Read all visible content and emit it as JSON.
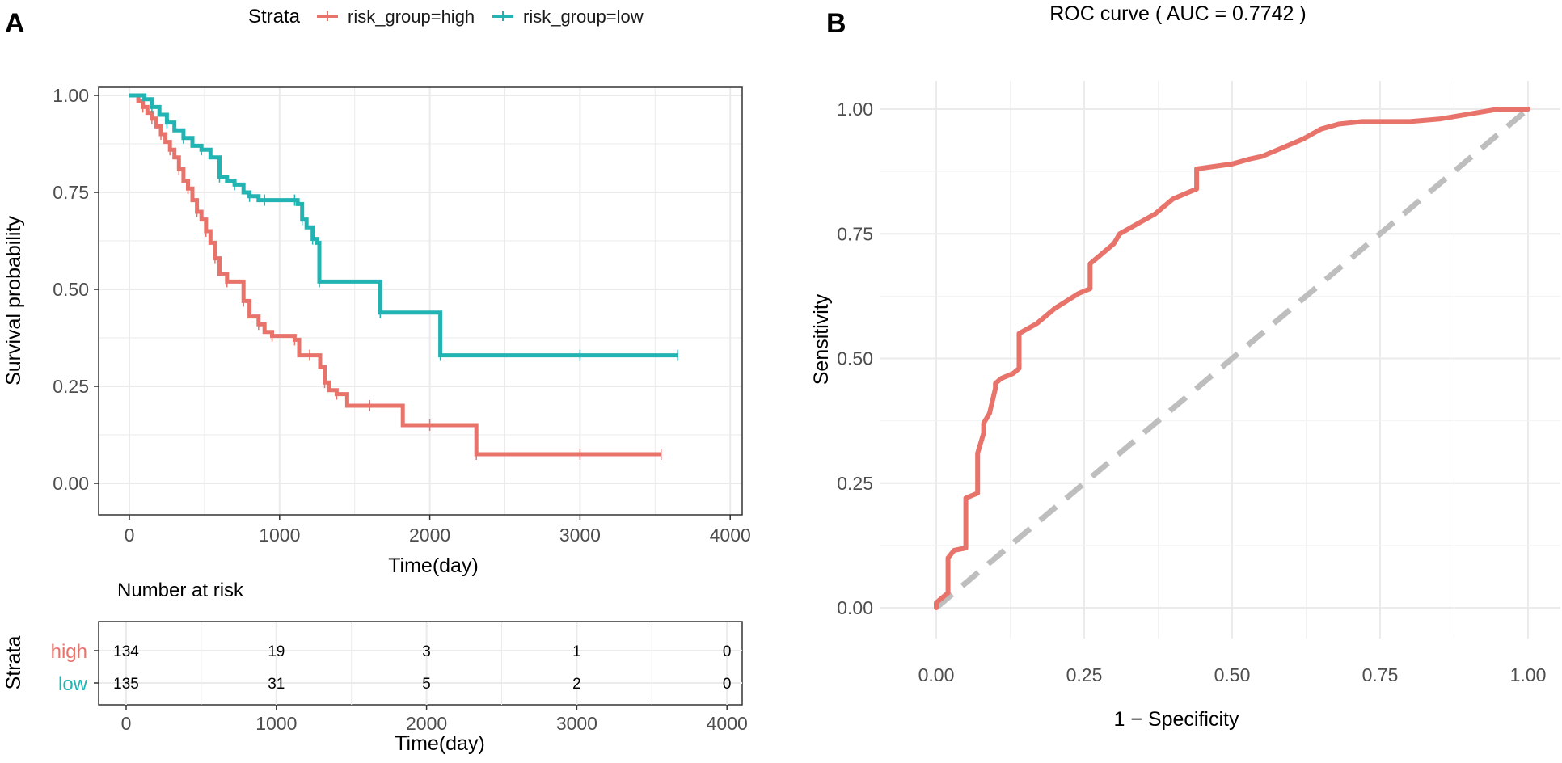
{
  "panels": {
    "a": "A",
    "b": "B"
  },
  "colors": {
    "high": "#E8736B",
    "low": "#22B3B3",
    "diagonal": "#BEBEBE",
    "grid": "#EBEBEB",
    "axis": "#333333"
  },
  "legend": {
    "title": "Strata",
    "high": "risk_group=high",
    "low": "risk_group=low"
  },
  "km": {
    "ylabel": "Survival probability",
    "xlabel": "Time(day)"
  },
  "risk_table": {
    "title": "Number at risk",
    "strata_label": "Strata",
    "row_labels": [
      "high",
      "low"
    ],
    "xlabel": "Time(day)"
  },
  "roc": {
    "title": "ROC curve ( AUC =  0.7742 )",
    "xlabel": "1 − Specificity",
    "ylabel": "Sensitivity"
  },
  "chart_data": [
    {
      "type": "line",
      "subtype": "kaplan-meier",
      "xlim": [
        0,
        4000
      ],
      "ylim": [
        0,
        1
      ],
      "xticks": [
        "0",
        "1000",
        "2000",
        "3000",
        "4000"
      ],
      "yticks": [
        "0.00",
        "0.25",
        "0.50",
        "0.75",
        "1.00"
      ],
      "series": [
        {
          "name": "risk_group=high",
          "x": [
            0,
            60,
            90,
            120,
            150,
            180,
            210,
            240,
            270,
            300,
            330,
            360,
            390,
            420,
            450,
            480,
            510,
            540,
            570,
            600,
            650,
            700,
            760,
            800,
            860,
            900,
            950,
            1050,
            1100,
            1130,
            1200,
            1270,
            1300,
            1330,
            1380,
            1450,
            1600,
            1820,
            2000,
            2200,
            2310,
            2500,
            3000,
            3540
          ],
          "y": [
            1.0,
            0.985,
            0.97,
            0.955,
            0.94,
            0.92,
            0.9,
            0.88,
            0.86,
            0.84,
            0.81,
            0.78,
            0.76,
            0.73,
            0.7,
            0.68,
            0.65,
            0.62,
            0.58,
            0.54,
            0.52,
            0.52,
            0.47,
            0.43,
            0.41,
            0.39,
            0.38,
            0.38,
            0.37,
            0.33,
            0.33,
            0.3,
            0.26,
            0.24,
            0.23,
            0.2,
            0.2,
            0.15,
            0.15,
            0.15,
            0.075,
            0.075,
            0.075,
            0.075
          ]
        },
        {
          "name": "risk_group=low",
          "x": [
            0,
            100,
            150,
            200,
            250,
            300,
            360,
            420,
            480,
            540,
            600,
            650,
            700,
            760,
            800,
            860,
            900,
            1000,
            1100,
            1120,
            1150,
            1180,
            1220,
            1250,
            1265,
            1500,
            1670,
            1900,
            2070,
            2500,
            3000,
            3650
          ],
          "y": [
            1.0,
            0.99,
            0.97,
            0.95,
            0.93,
            0.91,
            0.89,
            0.87,
            0.86,
            0.84,
            0.79,
            0.78,
            0.77,
            0.75,
            0.74,
            0.73,
            0.73,
            0.73,
            0.73,
            0.72,
            0.68,
            0.66,
            0.63,
            0.62,
            0.52,
            0.52,
            0.44,
            0.44,
            0.33,
            0.33,
            0.33,
            0.33
          ]
        }
      ]
    },
    {
      "type": "table",
      "title": "Number at risk",
      "xlim": [
        0,
        4000
      ],
      "xticks": [
        "0",
        "1000",
        "2000",
        "3000",
        "4000"
      ],
      "times": [
        0,
        1000,
        2000,
        3000,
        4000
      ],
      "rows": [
        {
          "strata": "high",
          "values": [
            "134",
            "19",
            "3",
            "1",
            "0"
          ]
        },
        {
          "strata": "low",
          "values": [
            "135",
            "31",
            "5",
            "2",
            "0"
          ]
        }
      ]
    },
    {
      "type": "line",
      "subtype": "roc",
      "title": "ROC curve ( AUC =  0.7742 )",
      "xlabel": "1 − Specificity",
      "ylabel": "Sensitivity",
      "xlim": [
        0,
        1
      ],
      "ylim": [
        0,
        1
      ],
      "xticks": [
        "0.00",
        "0.25",
        "0.50",
        "0.75",
        "1.00"
      ],
      "yticks": [
        "0.00",
        "0.25",
        "0.50",
        "0.75",
        "1.00"
      ],
      "auc": 0.7742,
      "series": [
        {
          "name": "ROC",
          "x": [
            0.0,
            0.0,
            0.01,
            0.02,
            0.02,
            0.03,
            0.05,
            0.05,
            0.07,
            0.07,
            0.08,
            0.08,
            0.09,
            0.1,
            0.1,
            0.11,
            0.13,
            0.14,
            0.14,
            0.17,
            0.2,
            0.24,
            0.26,
            0.26,
            0.28,
            0.3,
            0.31,
            0.34,
            0.37,
            0.4,
            0.42,
            0.44,
            0.44,
            0.5,
            0.53,
            0.55,
            0.58,
            0.62,
            0.65,
            0.68,
            0.72,
            0.8,
            0.85,
            0.9,
            0.95,
            1.0
          ],
          "y": [
            0.0,
            0.01,
            0.02,
            0.03,
            0.1,
            0.115,
            0.12,
            0.22,
            0.23,
            0.31,
            0.35,
            0.37,
            0.39,
            0.44,
            0.45,
            0.46,
            0.47,
            0.48,
            0.55,
            0.57,
            0.6,
            0.63,
            0.64,
            0.69,
            0.71,
            0.73,
            0.75,
            0.77,
            0.79,
            0.82,
            0.83,
            0.84,
            0.88,
            0.89,
            0.9,
            0.905,
            0.92,
            0.94,
            0.96,
            0.97,
            0.975,
            0.975,
            0.98,
            0.99,
            1.0,
            1.0
          ]
        },
        {
          "name": "reference",
          "x": [
            0,
            1
          ],
          "y": [
            0,
            1
          ]
        }
      ]
    }
  ]
}
